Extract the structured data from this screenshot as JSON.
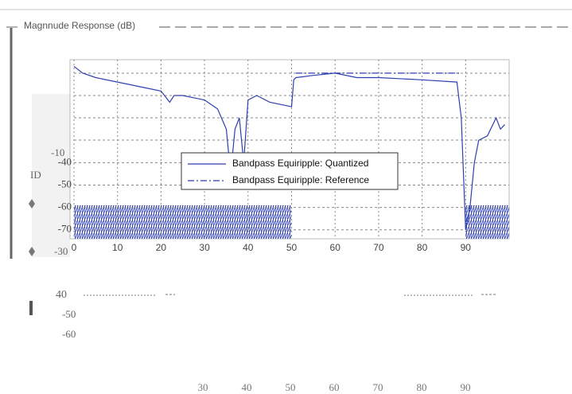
{
  "panel_title": "Magnnude Response (dB)",
  "chart_data": {
    "type": "line",
    "x": [
      0,
      2,
      5,
      10,
      15,
      20,
      22,
      23,
      25,
      30,
      33,
      35,
      36,
      37,
      38,
      39,
      40,
      42,
      45,
      50,
      50.5,
      51,
      55,
      60,
      65,
      70,
      80,
      88,
      89,
      90,
      91,
      92,
      93,
      95,
      97,
      98,
      99
    ],
    "series": [
      {
        "name": "Bandpass Equiripple: Quantized",
        "color": "#2e3fb0",
        "dash": "solid",
        "values": [
          3,
          0,
          -2,
          -4,
          -6,
          -8,
          -13,
          -10,
          -10,
          -12,
          -16,
          -25,
          -45,
          -25,
          -20,
          -40,
          -12,
          -10,
          -13,
          -15,
          -3,
          -2,
          -1,
          0,
          -2,
          -2,
          -3,
          -4,
          -20,
          -70,
          -60,
          -40,
          -30,
          -28,
          -20,
          -25,
          -23
        ]
      },
      {
        "name": "Bandpass Equiripple: Reference",
        "color": "#2e3fb0",
        "dash": "dashdot",
        "values": [
          null,
          null,
          null,
          null,
          null,
          null,
          null,
          null,
          null,
          null,
          null,
          null,
          null,
          null,
          null,
          null,
          null,
          null,
          null,
          null,
          null,
          0,
          0,
          0,
          0,
          0,
          0,
          0,
          0,
          null,
          null,
          null,
          null,
          null,
          null,
          null,
          null
        ]
      }
    ],
    "xlim": [
      0,
      100
    ],
    "xticks": [
      0,
      10,
      20,
      30,
      40,
      50,
      60,
      70,
      80,
      90
    ],
    "ylim": [
      -74,
      6
    ],
    "yticks": [
      -70,
      -60,
      -50,
      -40
    ],
    "grid": true
  },
  "ghost_labels": [
    "-10",
    "ID",
    "-30",
    "40",
    "-50",
    "-60"
  ],
  "ghost_x_labels": [
    30,
    40,
    50,
    60,
    70,
    80,
    90
  ]
}
